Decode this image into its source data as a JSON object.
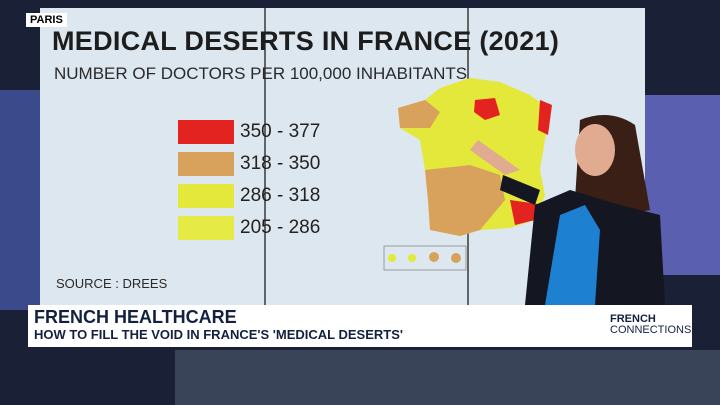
{
  "location": "PARIS",
  "screen": {
    "title": "MEDICAL DESERTS IN FRANCE (2021)",
    "subtitle": "NUMBER OF DOCTORS PER 100,000 INHABITANTS",
    "legend": [
      {
        "label": "350 - 377",
        "color": "#e2231f"
      },
      {
        "label": "318 - 350",
        "color": "#d9a25c"
      },
      {
        "label": "286 - 318",
        "color": "#e3e83a"
      },
      {
        "label": "205 - 286",
        "color": "#e6ea45"
      }
    ],
    "source": "SOURCE : DREES"
  },
  "lower_third": {
    "headline": "FRENCH HEALTHCARE",
    "subheadline": "HOW TO FILL THE VOID IN FRANCE'S 'MEDICAL DESERTS'"
  },
  "logo": {
    "line1": "FRENCH",
    "line2": "CONNECTIONS"
  }
}
